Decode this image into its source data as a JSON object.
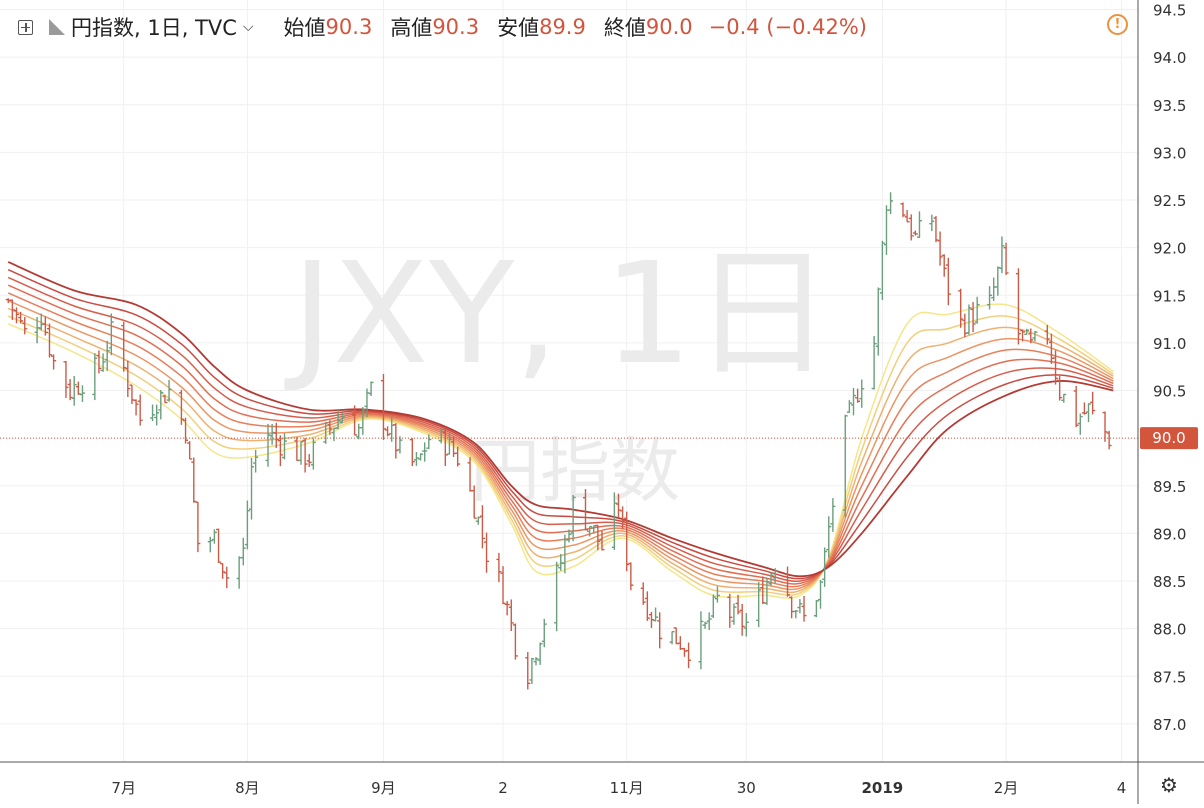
{
  "legend": {
    "symbol": "円指数, 1日, TVC",
    "open_label": "始値",
    "open": "90.3",
    "high_label": "高値",
    "high": "90.3",
    "low_label": "安値",
    "low": "89.9",
    "close_label": "終値",
    "close": "90.0",
    "change": "−0.4 (−0.42%)"
  },
  "watermark": {
    "ticker": "JXY, 1日",
    "name": "円指数"
  },
  "icons": {
    "add": "plus-square-icon",
    "series": "bar-style-icon",
    "dropdown": "chevron-down-icon",
    "alert": "warning-icon",
    "settings": "gear-icon"
  },
  "colors": {
    "up": "#6a9e7c",
    "down": "#cb5b47",
    "last_price": "#d2553c",
    "ribbon": [
      "#f5e68a",
      "#f2cf7c",
      "#eeb170",
      "#eb9664",
      "#e77f5b",
      "#e26e53",
      "#d85d4b",
      "#c94b41",
      "#b43a34"
    ]
  },
  "chart_data": {
    "type": "ohlc",
    "title": "円指数, 1日, TVC",
    "ylim": [
      86.85,
      94.4
    ],
    "y_ticks": [
      "87.0",
      "87.5",
      "88.0",
      "88.5",
      "89.0",
      "89.5",
      "90.0",
      "90.5",
      "91.0",
      "91.5",
      "92.0",
      "92.5",
      "93.0",
      "93.5",
      "94.0",
      "94.5"
    ],
    "x_range": [
      "2018-06-04",
      "2019-03-02"
    ],
    "x_ticks": [
      {
        "date": "2018-07-02",
        "label": "7月"
      },
      {
        "date": "2018-08-01",
        "label": "8月"
      },
      {
        "date": "2018-09-03",
        "label": "9月"
      },
      {
        "date": "2018-10-02",
        "label": "2"
      },
      {
        "date": "2018-11-01",
        "label": "11月"
      },
      {
        "date": "2018-11-30",
        "label": "30"
      },
      {
        "date": "2019-01-02",
        "label": "2019"
      },
      {
        "date": "2019-02-01",
        "label": "2月"
      },
      {
        "date": "2019-03-01",
        "label": "4"
      }
    ],
    "last_price": {
      "value": 90.0,
      "label": "90.0"
    },
    "ohlc_points": [
      [
        "2018-06-04",
        91.45
      ],
      [
        "2018-06-08",
        91.1
      ],
      [
        "2018-06-12",
        91.3
      ],
      [
        "2018-06-15",
        90.8
      ],
      [
        "2018-06-19",
        90.5
      ],
      [
        "2018-06-22",
        90.6
      ],
      [
        "2018-06-26",
        90.75
      ],
      [
        "2018-06-29",
        91.1
      ],
      [
        "2018-07-03",
        90.6
      ],
      [
        "2018-07-06",
        90.2
      ],
      [
        "2018-07-10",
        90.4
      ],
      [
        "2018-07-13",
        90.5
      ],
      [
        "2018-07-17",
        90.1
      ],
      [
        "2018-07-19",
        89.3
      ],
      [
        "2018-07-20",
        88.9
      ],
      [
        "2018-07-24",
        88.95
      ],
      [
        "2018-07-27",
        88.55
      ],
      [
        "2018-07-31",
        88.8
      ],
      [
        "2018-08-02",
        89.7
      ],
      [
        "2018-08-06",
        90.05
      ],
      [
        "2018-08-09",
        89.95
      ],
      [
        "2018-08-13",
        89.85
      ],
      [
        "2018-08-16",
        89.8
      ],
      [
        "2018-08-20",
        90.05
      ],
      [
        "2018-08-24",
        90.25
      ],
      [
        "2018-08-28",
        90.1
      ],
      [
        "2018-08-31",
        90.5
      ],
      [
        "2018-09-04",
        90.1
      ],
      [
        "2018-09-07",
        89.85
      ],
      [
        "2018-09-11",
        89.7
      ],
      [
        "2018-09-14",
        90.0
      ],
      [
        "2018-09-18",
        89.95
      ],
      [
        "2018-09-21",
        89.8
      ],
      [
        "2018-09-25",
        89.3
      ],
      [
        "2018-09-28",
        88.8
      ],
      [
        "2018-10-02",
        88.4
      ],
      [
        "2018-10-05",
        87.85
      ],
      [
        "2018-10-08",
        87.55
      ],
      [
        "2018-10-10",
        87.8
      ],
      [
        "2018-10-12",
        88.1
      ],
      [
        "2018-10-16",
        88.7
      ],
      [
        "2018-10-19",
        89.3
      ],
      [
        "2018-10-23",
        89.1
      ],
      [
        "2018-10-26",
        88.85
      ],
      [
        "2018-10-30",
        89.3
      ],
      [
        "2018-11-02",
        88.5
      ],
      [
        "2018-11-06",
        88.25
      ],
      [
        "2018-11-09",
        88.0
      ],
      [
        "2018-11-13",
        87.9
      ],
      [
        "2018-11-16",
        87.8
      ],
      [
        "2018-11-20",
        88.0
      ],
      [
        "2018-11-23",
        88.3
      ],
      [
        "2018-11-27",
        88.1
      ],
      [
        "2018-11-30",
        88.05
      ],
      [
        "2018-12-04",
        88.4
      ],
      [
        "2018-12-07",
        88.7
      ],
      [
        "2018-12-11",
        88.3
      ],
      [
        "2018-12-14",
        88.1
      ],
      [
        "2018-12-18",
        88.45
      ],
      [
        "2018-12-20",
        89.05
      ],
      [
        "2018-12-24",
        90.1
      ],
      [
        "2018-12-27",
        90.5
      ],
      [
        "2018-12-31",
        91.0
      ],
      [
        "2019-01-03",
        92.5
      ],
      [
        "2019-01-07",
        92.4
      ],
      [
        "2019-01-10",
        92.1
      ],
      [
        "2019-01-14",
        92.3
      ],
      [
        "2019-01-17",
        91.7
      ],
      [
        "2019-01-21",
        91.2
      ],
      [
        "2019-01-24",
        91.3
      ],
      [
        "2019-01-28",
        91.4
      ],
      [
        "2019-01-31",
        91.9
      ],
      [
        "2019-02-04",
        91.1
      ],
      [
        "2019-02-07",
        90.95
      ],
      [
        "2019-02-11",
        91.1
      ],
      [
        "2019-02-14",
        90.5
      ],
      [
        "2019-02-18",
        90.2
      ],
      [
        "2019-02-21",
        90.3
      ],
      [
        "2019-02-26",
        90.0
      ]
    ],
    "ribbon": {
      "series_count": 9,
      "fast": [
        [
          "2018-06-04",
          91.2
        ],
        [
          "2018-06-20",
          90.9
        ],
        [
          "2018-07-05",
          90.55
        ],
        [
          "2018-07-16",
          90.2
        ],
        [
          "2018-07-24",
          89.85
        ],
        [
          "2018-08-01",
          89.8
        ],
        [
          "2018-08-16",
          89.95
        ],
        [
          "2018-08-30",
          90.2
        ],
        [
          "2018-09-13",
          90.05
        ],
        [
          "2018-09-25",
          89.75
        ],
        [
          "2018-10-04",
          89.1
        ],
        [
          "2018-10-10",
          88.6
        ],
        [
          "2018-10-19",
          88.65
        ],
        [
          "2018-10-31",
          88.95
        ],
        [
          "2018-11-12",
          88.6
        ],
        [
          "2018-11-22",
          88.35
        ],
        [
          "2018-12-04",
          88.35
        ],
        [
          "2018-12-13",
          88.35
        ],
        [
          "2018-12-20",
          88.75
        ],
        [
          "2018-12-28",
          90.0
        ],
        [
          "2019-01-08",
          91.2
        ],
        [
          "2019-01-18",
          91.3
        ],
        [
          "2019-02-01",
          91.4
        ],
        [
          "2019-02-14",
          91.1
        ],
        [
          "2019-02-27",
          90.7
        ]
      ],
      "slow": [
        [
          "2018-06-04",
          91.85
        ],
        [
          "2018-06-20",
          91.55
        ],
        [
          "2018-07-05",
          91.4
        ],
        [
          "2018-07-16",
          91.1
        ],
        [
          "2018-07-24",
          90.75
        ],
        [
          "2018-08-01",
          90.5
        ],
        [
          "2018-08-16",
          90.3
        ],
        [
          "2018-08-30",
          90.3
        ],
        [
          "2018-09-13",
          90.2
        ],
        [
          "2018-09-25",
          89.95
        ],
        [
          "2018-10-04",
          89.5
        ],
        [
          "2018-10-10",
          89.3
        ],
        [
          "2018-10-19",
          89.25
        ],
        [
          "2018-10-31",
          89.15
        ],
        [
          "2018-11-12",
          88.95
        ],
        [
          "2018-11-22",
          88.8
        ],
        [
          "2018-12-04",
          88.65
        ],
        [
          "2018-12-13",
          88.55
        ],
        [
          "2018-12-20",
          88.65
        ],
        [
          "2018-12-28",
          89.0
        ],
        [
          "2019-01-08",
          89.6
        ],
        [
          "2019-01-18",
          90.1
        ],
        [
          "2019-02-01",
          90.45
        ],
        [
          "2019-02-14",
          90.6
        ],
        [
          "2019-02-27",
          90.5
        ]
      ]
    }
  }
}
